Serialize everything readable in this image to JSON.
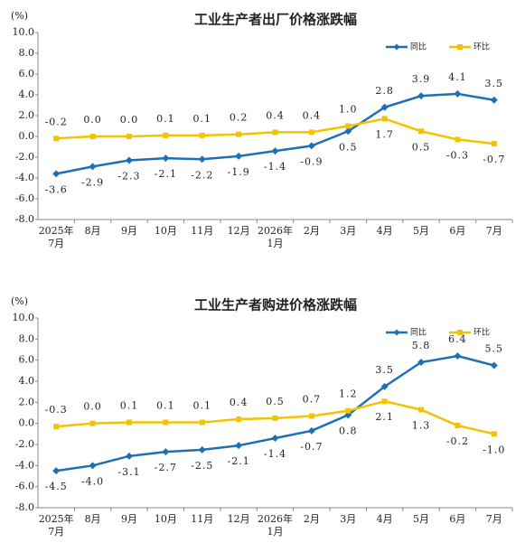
{
  "chart_data": [
    {
      "type": "line",
      "title": "工业生产者出厂价格涨跌幅",
      "unit": "(%)",
      "categories": [
        "2025年\n7月",
        "8月",
        "9月",
        "10月",
        "11月",
        "12月",
        "2026年\n1月",
        "2月",
        "3月",
        "4月",
        "5月",
        "6月",
        "7月"
      ],
      "series": [
        {
          "name": "同比",
          "color": "#1f6fb5",
          "marker": "diamond",
          "values": [
            -3.6,
            -2.9,
            -2.3,
            -2.1,
            -2.2,
            -1.9,
            -1.4,
            -0.9,
            0.5,
            2.8,
            3.9,
            4.1,
            3.5
          ],
          "value_labels": [
            "-3.6",
            "-2.9",
            "-2.3",
            "-2.1",
            "-2.2",
            "-1.9",
            "-1.4",
            "-0.9",
            "0.5",
            "2.8",
            "3.9",
            "4.1",
            "3.5"
          ]
        },
        {
          "name": "环比",
          "color": "#f2c300",
          "marker": "square",
          "values": [
            -0.2,
            0.0,
            0.0,
            0.1,
            0.1,
            0.2,
            0.4,
            0.4,
            1.0,
            1.7,
            0.5,
            -0.3,
            -0.7
          ],
          "value_labels": [
            "-0.2",
            "0.0",
            "0.0",
            "0.1",
            "0.1",
            "0.2",
            "0.4",
            "0.4",
            "1.0",
            "1.7",
            "0.5",
            "-0.3",
            "-0.7"
          ]
        }
      ],
      "ylim": [
        -8,
        10
      ],
      "yticks": [
        {
          "value": -8,
          "label": "-8.0"
        },
        {
          "value": -6,
          "label": "-6.0"
        },
        {
          "value": -4,
          "label": "-4.0"
        },
        {
          "value": -2,
          "label": "-2.0"
        },
        {
          "value": 0,
          "label": "0.0"
        },
        {
          "value": 2,
          "label": "2.0"
        },
        {
          "value": 4,
          "label": "4.0"
        },
        {
          "value": 6,
          "label": "6.0"
        },
        {
          "value": 8,
          "label": "8.0"
        },
        {
          "value": 10,
          "label": "10.0"
        }
      ],
      "legend": "upper right"
    },
    {
      "type": "line",
      "title": "工业生产者购进价格涨跌幅",
      "unit": "(%)",
      "categories": [
        "2025年\n7月",
        "8月",
        "9月",
        "10月",
        "11月",
        "12月",
        "2026年\n1月",
        "2月",
        "3月",
        "4月",
        "5月",
        "6月",
        "7月"
      ],
      "series": [
        {
          "name": "同比",
          "color": "#1f6fb5",
          "marker": "diamond",
          "values": [
            -4.5,
            -4.0,
            -3.1,
            -2.7,
            -2.5,
            -2.1,
            -1.4,
            -0.7,
            0.8,
            3.5,
            5.8,
            6.4,
            5.5
          ],
          "value_labels": [
            "-4.5",
            "-4.0",
            "-3.1",
            "-2.7",
            "-2.5",
            "-2.1",
            "-1.4",
            "-0.7",
            "0.8",
            "3.5",
            "5.8",
            "6.4",
            "5.5"
          ]
        },
        {
          "name": "环比",
          "color": "#f2c300",
          "marker": "square",
          "values": [
            -0.3,
            0.0,
            0.1,
            0.1,
            0.1,
            0.4,
            0.5,
            0.7,
            1.2,
            2.1,
            1.3,
            -0.2,
            -1.0
          ],
          "value_labels": [
            "-0.3",
            "0.0",
            "0.1",
            "0.1",
            "0.1",
            "0.4",
            "0.5",
            "0.7",
            "1.2",
            "2.1",
            "1.3",
            "-0.2",
            "-1.0"
          ]
        }
      ],
      "ylim": [
        -8,
        10
      ],
      "yticks": [
        {
          "value": -8,
          "label": "-8.0"
        },
        {
          "value": -6,
          "label": "-6.0"
        },
        {
          "value": -4,
          "label": "-4.0"
        },
        {
          "value": -2,
          "label": "-2.0"
        },
        {
          "value": 0,
          "label": "0.0"
        },
        {
          "value": 2,
          "label": "2.0"
        },
        {
          "value": 4,
          "label": "4.0"
        },
        {
          "value": 6,
          "label": "6.0"
        },
        {
          "value": 8,
          "label": "8.0"
        },
        {
          "value": 10,
          "label": "10.0"
        }
      ],
      "legend": "upper right"
    }
  ]
}
